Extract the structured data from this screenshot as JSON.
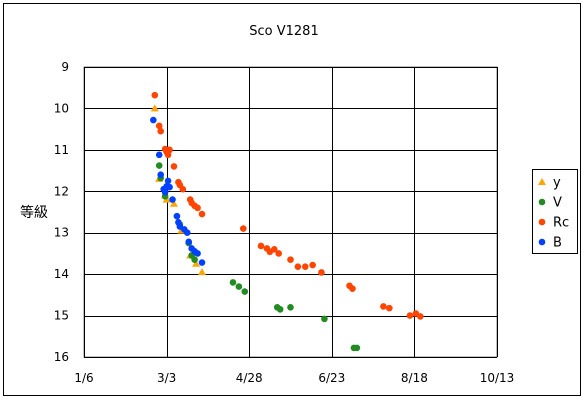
{
  "chart_data": {
    "type": "scatter",
    "title": "Sco V1281",
    "ylabel": "等級",
    "xlabel": "",
    "x_ticks": [
      "1/6",
      "3/3",
      "4/28",
      "6/23",
      "8/18",
      "10/13"
    ],
    "y_ticks": [
      "9",
      "10",
      "11",
      "12",
      "13",
      "14",
      "15",
      "16"
    ],
    "ylim": [
      16,
      9
    ],
    "y_inverted": true,
    "x_unit": "date",
    "xlim": [
      "1/6",
      "10/13"
    ],
    "grid": true,
    "legend_position": "right",
    "series": [
      {
        "name": "y",
        "color": "#ffa500",
        "marker": "triangle",
        "points": [
          [
            "2/23",
            10.0
          ],
          [
            "2/26",
            11.7
          ],
          [
            "3/2",
            12.1
          ],
          [
            "3/3",
            12.2
          ],
          [
            "3/8",
            12.3
          ],
          [
            "3/13",
            12.95
          ],
          [
            "3/19",
            13.55
          ],
          [
            "3/23",
            13.75
          ],
          [
            "3/27",
            13.95
          ]
        ]
      },
      {
        "name": "V",
        "color": "#228b22",
        "marker": "circle",
        "points": [
          [
            "2/26",
            11.38
          ],
          [
            "2/27",
            11.68
          ],
          [
            "3/2",
            12.12
          ],
          [
            "3/12",
            12.8
          ],
          [
            "3/18",
            13.25
          ],
          [
            "3/20",
            13.55
          ],
          [
            "3/22",
            13.65
          ],
          [
            "4/17",
            14.2
          ],
          [
            "4/21",
            14.3
          ],
          [
            "4/25",
            14.42
          ],
          [
            "5/17",
            14.8
          ],
          [
            "5/19",
            14.85
          ],
          [
            "5/26",
            14.8
          ],
          [
            "6/18",
            15.08
          ],
          [
            "7/8",
            15.78
          ],
          [
            "7/10",
            15.78
          ]
        ]
      },
      {
        "name": "Rc",
        "color": "#ff4500",
        "marker": "circle",
        "points": [
          [
            "2/23",
            9.68
          ],
          [
            "2/26",
            10.42
          ],
          [
            "2/27",
            10.55
          ],
          [
            "3/2",
            10.98
          ],
          [
            "3/3",
            11.05
          ],
          [
            "3/4",
            11.12
          ],
          [
            "3/5",
            11.0
          ],
          [
            "3/8",
            11.4
          ],
          [
            "3/11",
            11.78
          ],
          [
            "3/12",
            11.85
          ],
          [
            "3/14",
            11.95
          ],
          [
            "3/19",
            12.2
          ],
          [
            "3/20",
            12.28
          ],
          [
            "3/22",
            12.35
          ],
          [
            "3/24",
            12.4
          ],
          [
            "3/27",
            12.55
          ],
          [
            "4/24",
            12.9
          ],
          [
            "5/6",
            13.32
          ],
          [
            "5/10",
            13.38
          ],
          [
            "5/12",
            13.46
          ],
          [
            "5/15",
            13.4
          ],
          [
            "5/18",
            13.5
          ],
          [
            "5/26",
            13.65
          ],
          [
            "5/31",
            13.82
          ],
          [
            "6/5",
            13.82
          ],
          [
            "6/10",
            13.78
          ],
          [
            "6/16",
            13.96
          ],
          [
            "7/5",
            14.28
          ],
          [
            "7/7",
            14.35
          ],
          [
            "7/28",
            14.78
          ],
          [
            "8/1",
            14.82
          ],
          [
            "8/15",
            15.0
          ],
          [
            "8/19",
            14.95
          ],
          [
            "8/22",
            15.02
          ]
        ]
      },
      {
        "name": "B",
        "color": "#0040ff",
        "marker": "circle",
        "points": [
          [
            "2/22",
            10.28
          ],
          [
            "2/26",
            11.12
          ],
          [
            "2/27",
            11.6
          ],
          [
            "3/1",
            11.95
          ],
          [
            "3/2",
            12.02
          ],
          [
            "3/3",
            11.88
          ],
          [
            "3/4",
            11.75
          ],
          [
            "3/5",
            11.9
          ],
          [
            "3/7",
            12.2
          ],
          [
            "3/10",
            12.6
          ],
          [
            "3/11",
            12.75
          ],
          [
            "3/12",
            12.85
          ],
          [
            "3/15",
            12.92
          ],
          [
            "3/17",
            13.0
          ],
          [
            "3/18",
            13.22
          ],
          [
            "3/20",
            13.38
          ],
          [
            "3/22",
            13.45
          ],
          [
            "3/24",
            13.5
          ],
          [
            "3/27",
            13.72
          ]
        ]
      }
    ]
  }
}
